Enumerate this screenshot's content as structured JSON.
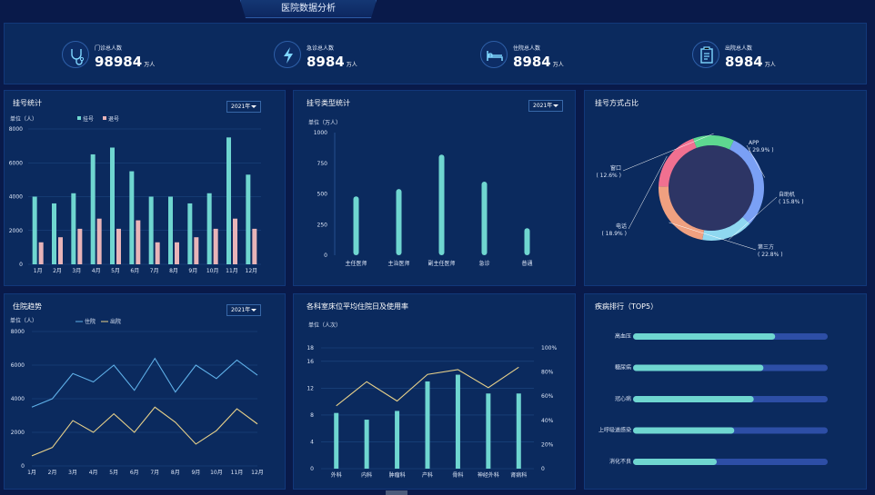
{
  "page_title": "医院数据分析",
  "kpis": [
    {
      "label": "门诊总人数",
      "value": "98984",
      "unit": "万人",
      "icon": "stethoscope-icon"
    },
    {
      "label": "急诊总人数",
      "value": "8984",
      "unit": "万人",
      "icon": "lightning-icon"
    },
    {
      "label": "住院总人数",
      "value": "8984",
      "unit": "万人",
      "icon": "bed-icon"
    },
    {
      "label": "出院总人数",
      "value": "8984",
      "unit": "万人",
      "icon": "clipboard-icon"
    }
  ],
  "colors": {
    "teal": "#6fd6d0",
    "pink": "#e8b4b8",
    "yellow": "#e8d18a",
    "blue": "#5fb0e8",
    "track": "#2d4ea6"
  },
  "reg_stats": {
    "title": "挂号统计",
    "year": "2021年",
    "unit": "单位（人）",
    "chart_data": {
      "type": "bar",
      "categories": [
        "1月",
        "2月",
        "3月",
        "4月",
        "5月",
        "6月",
        "7月",
        "8月",
        "9月",
        "10月",
        "11月",
        "12月"
      ],
      "series": [
        {
          "name": "挂号",
          "values": [
            4000,
            3600,
            4200,
            6500,
            6900,
            5500,
            4000,
            4000,
            3600,
            4200,
            7500,
            5300
          ]
        },
        {
          "name": "退号",
          "values": [
            1300,
            1600,
            2100,
            2700,
            2100,
            2600,
            1300,
            1300,
            1600,
            2100,
            2700,
            2100
          ]
        }
      ],
      "yticks": [
        "0",
        "2000",
        "4000",
        "6000",
        "8000"
      ],
      "ylim": [
        0,
        8000
      ]
    }
  },
  "reg_type": {
    "title": "挂号类型统计",
    "year": "2021年",
    "unit": "单位（万人）",
    "chart_data": {
      "type": "bar",
      "categories": [
        "主任医师",
        "主治医师",
        "副主任医师",
        "急诊",
        "普通"
      ],
      "values": [
        480,
        540,
        820,
        600,
        220
      ],
      "yticks": [
        "0",
        "250",
        "500",
        "750",
        "1000"
      ],
      "ylim": [
        0,
        1000
      ]
    }
  },
  "reg_method": {
    "title": "挂号方式占比",
    "chart_data": {
      "type": "pie",
      "slices": [
        {
          "name": "APP",
          "label": "( 29.9% )",
          "value": 29.9,
          "color": "#7aa0f5"
        },
        {
          "name": "自助机",
          "label": "( 15.8% )",
          "value": 15.8,
          "color": "#8fd8f0"
        },
        {
          "name": "第三方",
          "label": "( 22.8% )",
          "value": 22.8,
          "color": "#f0a080"
        },
        {
          "name": "电话",
          "label": "( 18.9% )",
          "value": 18.9,
          "color": "#f07090"
        },
        {
          "name": "窗口",
          "label": "( 12.6% )",
          "value": 12.6,
          "color": "#5ed890"
        }
      ]
    }
  },
  "inpatient": {
    "title": "住院趋势",
    "year": "2021年",
    "unit": "单位（人）",
    "chart_data": {
      "type": "line",
      "categories": [
        "1月",
        "2月",
        "3月",
        "4月",
        "5月",
        "6月",
        "7月",
        "8月",
        "9月",
        "10月",
        "11月",
        "12月"
      ],
      "series": [
        {
          "name": "住院",
          "values": [
            3500,
            4000,
            5500,
            5000,
            6000,
            4500,
            6400,
            4400,
            6000,
            5200,
            6300,
            5400
          ]
        },
        {
          "name": "出院",
          "values": [
            600,
            1100,
            2700,
            2000,
            3100,
            2000,
            3500,
            2600,
            1300,
            2100,
            3400,
            2500
          ]
        }
      ],
      "yticks": [
        "0",
        "2000",
        "4000",
        "6000",
        "8000"
      ],
      "ylim": [
        0,
        8000
      ]
    }
  },
  "beds": {
    "title": "各科室床位平均住院日及使用率",
    "unit": "单位（人次）",
    "chart_data": {
      "type": "bar",
      "categories": [
        "外科",
        "内科",
        "肿瘤科",
        "产科",
        "骨科",
        "神经外科",
        "肾病科"
      ],
      "bars": [
        8.3,
        7.3,
        8.6,
        13,
        14,
        11.2,
        11.2
      ],
      "line": [
        52,
        72,
        56,
        78,
        82,
        67,
        84
      ],
      "yticks": [
        "0",
        "4",
        "8",
        "12",
        "16",
        "18"
      ],
      "y2ticks": [
        "0",
        "20%",
        "40%",
        "60%",
        "80%",
        "100%"
      ],
      "ylim": [
        0,
        18
      ],
      "y2lim": [
        0,
        100
      ]
    }
  },
  "diseases": {
    "title": "疾病排行（TOP5）",
    "chart_data": {
      "type": "bar",
      "categories": [
        "高血压",
        "糖尿病",
        "冠心病",
        "上呼吸道感染",
        "消化不良"
      ],
      "values": [
        73,
        67,
        62,
        52,
        43
      ]
    }
  }
}
